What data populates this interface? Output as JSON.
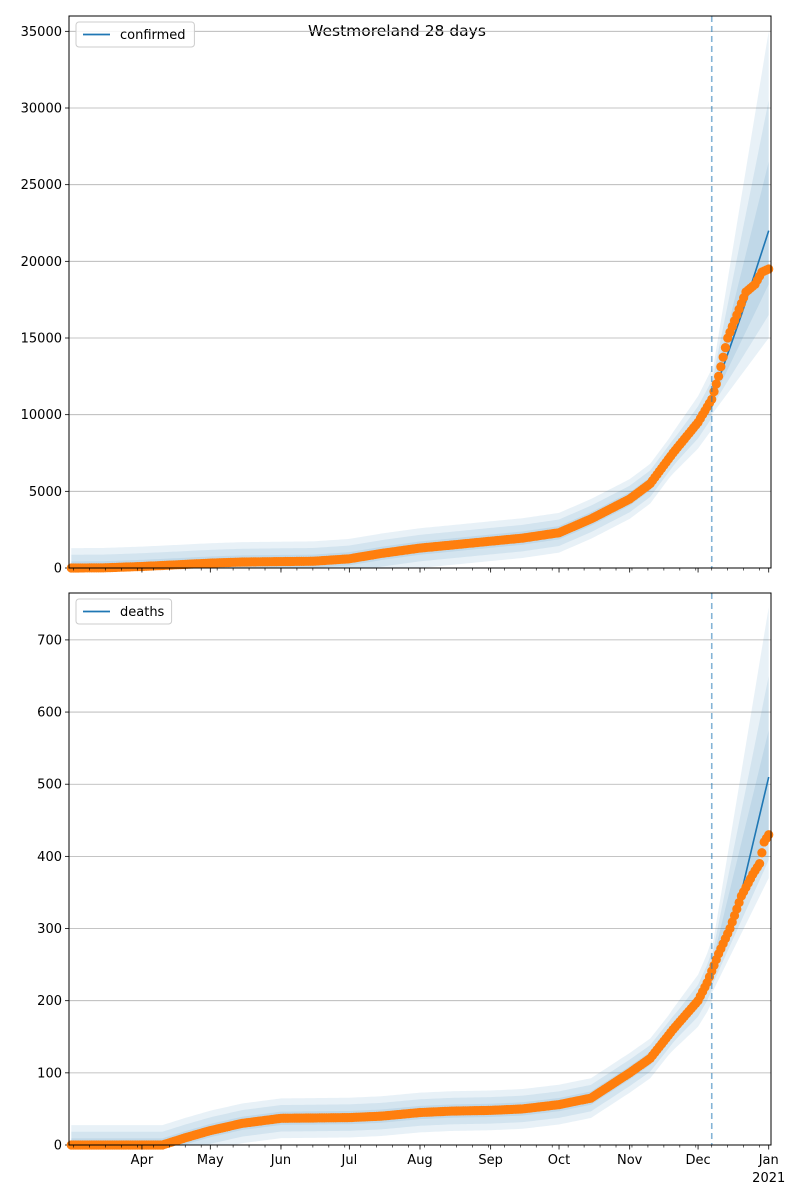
{
  "title": "Westmoreland 28 days",
  "x_tick_labels": [
    "Apr",
    "May",
    "Jun",
    "Jul",
    "Aug",
    "Sep",
    "Oct",
    "Nov",
    "Dec",
    "Jan"
  ],
  "x_year_label": "2021",
  "chart_data": [
    {
      "type": "line",
      "legend_label": "confirmed",
      "legend_position": "upper-left",
      "grid": "horizontal",
      "ylim": [
        0,
        36000
      ],
      "yticks": [
        0,
        5000,
        10000,
        15000,
        20000,
        25000,
        30000,
        35000
      ],
      "forecast_start": "2020-12-07",
      "observed": [
        [
          "2020-03-01",
          0
        ],
        [
          "2020-03-15",
          10
        ],
        [
          "2020-04-01",
          100
        ],
        [
          "2020-04-15",
          200
        ],
        [
          "2020-05-01",
          320
        ],
        [
          "2020-05-15",
          390
        ],
        [
          "2020-06-01",
          420
        ],
        [
          "2020-06-15",
          440
        ],
        [
          "2020-07-01",
          600
        ],
        [
          "2020-07-15",
          950
        ],
        [
          "2020-08-01",
          1300
        ],
        [
          "2020-08-15",
          1500
        ],
        [
          "2020-09-01",
          1750
        ],
        [
          "2020-09-15",
          1950
        ],
        [
          "2020-10-01",
          2300
        ],
        [
          "2020-10-15",
          3200
        ],
        [
          "2020-11-01",
          4500
        ],
        [
          "2020-11-10",
          5500
        ],
        [
          "2020-11-20",
          7500
        ],
        [
          "2020-12-01",
          9500
        ],
        [
          "2020-12-07",
          11000
        ],
        [
          "2020-12-10",
          12500
        ],
        [
          "2020-12-14",
          15000
        ],
        [
          "2020-12-18",
          16500
        ],
        [
          "2020-12-22",
          18000
        ],
        [
          "2020-12-26",
          18500
        ],
        [
          "2020-12-29",
          19300
        ],
        [
          "2021-01-01",
          19500
        ]
      ],
      "forecast": [
        [
          "2020-12-07",
          11000
        ],
        [
          "2020-12-20",
          16500
        ],
        [
          "2021-01-01",
          22000
        ]
      ],
      "bands": [
        {
          "low": [
            [
              "2020-12-07",
              10000
            ],
            [
              "2021-01-01",
              15000
            ]
          ],
          "high": [
            [
              "2020-12-07",
              12500
            ],
            [
              "2021-01-01",
              35000
            ]
          ]
        },
        {
          "low": [
            [
              "2020-12-07",
              10500
            ],
            [
              "2021-01-01",
              16500
            ]
          ],
          "high": [
            [
              "2020-12-07",
              12000
            ],
            [
              "2021-01-01",
              30500
            ]
          ]
        },
        {
          "low": [
            [
              "2020-12-07",
              10800
            ],
            [
              "2021-01-01",
              18500
            ]
          ],
          "high": [
            [
              "2020-12-07",
              11500
            ],
            [
              "2021-01-01",
              26500
            ]
          ]
        }
      ]
    },
    {
      "type": "line",
      "legend_label": "deaths",
      "legend_position": "upper-left",
      "grid": "horizontal",
      "ylim": [
        0,
        765
      ],
      "yticks": [
        0,
        100,
        200,
        300,
        400,
        500,
        600,
        700
      ],
      "forecast_start": "2020-12-07",
      "observed": [
        [
          "2020-03-01",
          0
        ],
        [
          "2020-04-10",
          0
        ],
        [
          "2020-04-20",
          10
        ],
        [
          "2020-05-01",
          20
        ],
        [
          "2020-05-15",
          30
        ],
        [
          "2020-06-01",
          37
        ],
        [
          "2020-07-01",
          38
        ],
        [
          "2020-07-15",
          40
        ],
        [
          "2020-08-01",
          45
        ],
        [
          "2020-08-15",
          47
        ],
        [
          "2020-09-01",
          48
        ],
        [
          "2020-09-15",
          50
        ],
        [
          "2020-10-01",
          56
        ],
        [
          "2020-10-15",
          65
        ],
        [
          "2020-11-01",
          100
        ],
        [
          "2020-11-10",
          120
        ],
        [
          "2020-11-20",
          160
        ],
        [
          "2020-12-01",
          200
        ],
        [
          "2020-12-05",
          225
        ],
        [
          "2020-12-10",
          265
        ],
        [
          "2020-12-15",
          300
        ],
        [
          "2020-12-20",
          345
        ],
        [
          "2020-12-25",
          375
        ],
        [
          "2020-12-28",
          390
        ],
        [
          "2020-12-30",
          420
        ],
        [
          "2021-01-01",
          430
        ]
      ],
      "forecast": [
        [
          "2020-12-07",
          240
        ],
        [
          "2020-12-20",
          350
        ],
        [
          "2021-01-01",
          510
        ]
      ],
      "bands": [
        {
          "low": [
            [
              "2020-12-07",
              210
            ],
            [
              "2021-01-01",
              370
            ]
          ],
          "high": [
            [
              "2020-12-07",
              270
            ],
            [
              "2021-01-01",
              745
            ]
          ]
        },
        {
          "low": [
            [
              "2020-12-07",
              220
            ],
            [
              "2021-01-01",
              395
            ]
          ],
          "high": [
            [
              "2020-12-07",
              260
            ],
            [
              "2021-01-01",
              650
            ]
          ]
        },
        {
          "low": [
            [
              "2020-12-07",
              230
            ],
            [
              "2021-01-01",
              430
            ]
          ],
          "high": [
            [
              "2020-12-07",
              250
            ],
            [
              "2021-01-01",
              575
            ]
          ]
        }
      ]
    }
  ]
}
